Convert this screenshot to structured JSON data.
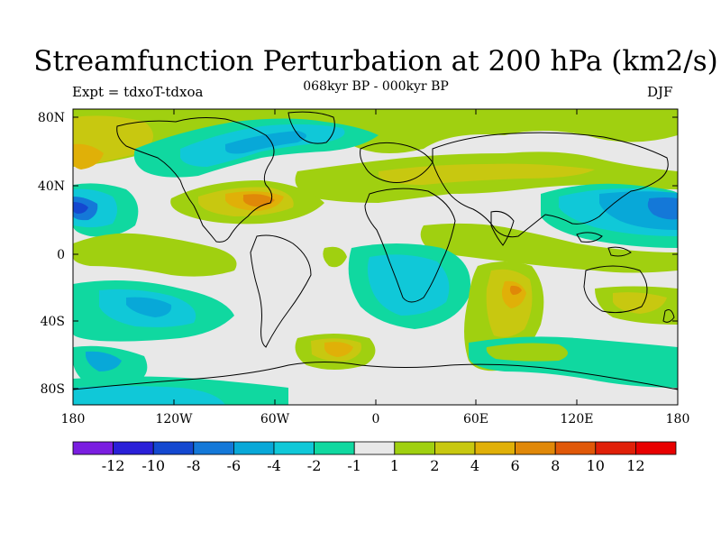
{
  "figure": {
    "title": "Streamfunction Perturbation at 200 hPa (km2/s)",
    "subtitle": "068kyr BP - 000kyr BP",
    "left_label": "Expt = tdxoT-tdxoa",
    "right_label": "DJF"
  },
  "axes": {
    "lat_ticks": [
      "80N",
      "40N",
      "0",
      "40S",
      "80S"
    ],
    "lon_ticks": [
      "180",
      "120W",
      "60W",
      "0",
      "60E",
      "120E",
      "180"
    ]
  },
  "colorbar": {
    "labels": [
      "-12",
      "-10",
      "-8",
      "-6",
      "-4",
      "-2",
      "-1",
      "1",
      "2",
      "4",
      "6",
      "8",
      "10",
      "12"
    ],
    "colors": [
      "#7a1ee0",
      "#2a20d8",
      "#1448d0",
      "#1478d8",
      "#08a8d8",
      "#10c8d8",
      "#10d8a0",
      "#e8e8e8",
      "#a0d010",
      "#c8c810",
      "#e0b008",
      "#e08808",
      "#e05808",
      "#e02008",
      "#e80000"
    ]
  }
}
